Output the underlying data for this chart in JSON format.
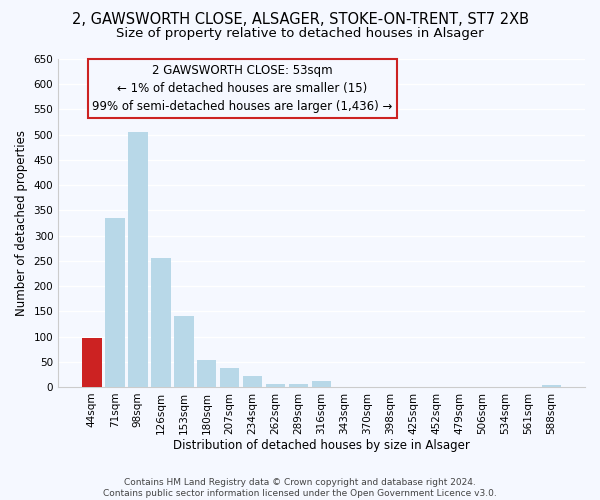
{
  "title": "2, GAWSWORTH CLOSE, ALSAGER, STOKE-ON-TRENT, ST7 2XB",
  "subtitle": "Size of property relative to detached houses in Alsager",
  "xlabel": "Distribution of detached houses by size in Alsager",
  "ylabel": "Number of detached properties",
  "bar_labels": [
    "44sqm",
    "71sqm",
    "98sqm",
    "126sqm",
    "153sqm",
    "180sqm",
    "207sqm",
    "234sqm",
    "262sqm",
    "289sqm",
    "316sqm",
    "343sqm",
    "370sqm",
    "398sqm",
    "425sqm",
    "452sqm",
    "479sqm",
    "506sqm",
    "534sqm",
    "561sqm",
    "588sqm"
  ],
  "bar_values": [
    98,
    335,
    505,
    255,
    140,
    53,
    38,
    21,
    6,
    6,
    11,
    0,
    0,
    0,
    0,
    0,
    0,
    0,
    0,
    0,
    3
  ],
  "bar_color_normal": "#b8d8e8",
  "bar_color_highlight": "#cc2222",
  "highlight_index": 0,
  "ylim": [
    0,
    650
  ],
  "yticks": [
    0,
    50,
    100,
    150,
    200,
    250,
    300,
    350,
    400,
    450,
    500,
    550,
    600,
    650
  ],
  "annotation_line1": "2 GAWSWORTH CLOSE: 53sqm",
  "annotation_line2": "← 1% of detached houses are smaller (15)",
  "annotation_line3": "99% of semi-detached houses are larger (1,436) →",
  "footer_line1": "Contains HM Land Registry data © Crown copyright and database right 2024.",
  "footer_line2": "Contains public sector information licensed under the Open Government Licence v3.0.",
  "bg_color": "#f5f8ff",
  "grid_color": "#ffffff",
  "title_fontsize": 10.5,
  "subtitle_fontsize": 9.5,
  "axis_label_fontsize": 8.5,
  "tick_fontsize": 7.5,
  "annotation_fontsize": 8.5,
  "footer_fontsize": 6.5
}
